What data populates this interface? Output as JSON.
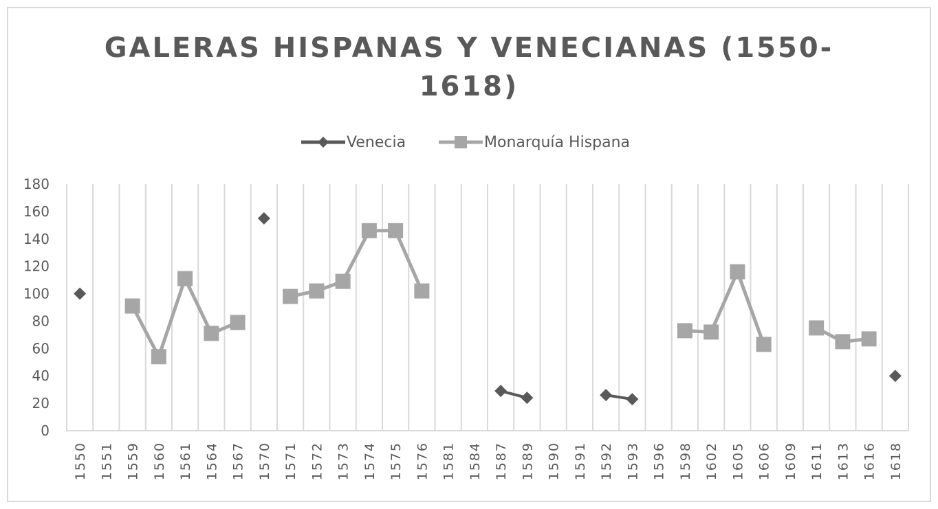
{
  "chart_data": {
    "type": "line",
    "title": "GALERAS HISPANAS Y VENECIANAS (1550-1618)",
    "title_lines": [
      "GALERAS HISPANAS Y VENECIANAS (1550-",
      "1618)"
    ],
    "categories": [
      "1550",
      "1551",
      "1559",
      "1560",
      "1561",
      "1564",
      "1567",
      "1570",
      "1571",
      "1572",
      "1573",
      "1574",
      "1575",
      "1576",
      "1581",
      "1584",
      "1587",
      "1589",
      "1590",
      "1591",
      "1592",
      "1593",
      "1596",
      "1598",
      "1602",
      "1605",
      "1606",
      "1609",
      "1611",
      "1613",
      "1616",
      "1618"
    ],
    "series": [
      {
        "name": "Venecia",
        "color": "#595959",
        "marker": "diamond",
        "values": [
          100,
          null,
          null,
          null,
          null,
          null,
          null,
          155,
          null,
          null,
          null,
          null,
          null,
          null,
          null,
          null,
          29,
          24,
          null,
          null,
          26,
          23,
          null,
          null,
          null,
          null,
          null,
          null,
          null,
          null,
          null,
          40
        ]
      },
      {
        "name": "Monarquía Hispana",
        "color": "#a6a6a6",
        "marker": "square",
        "values": [
          null,
          null,
          91,
          54,
          111,
          71,
          79,
          null,
          98,
          102,
          109,
          146,
          146,
          102,
          null,
          null,
          null,
          null,
          null,
          null,
          null,
          null,
          null,
          73,
          72,
          116,
          63,
          null,
          75,
          65,
          67,
          null
        ]
      }
    ],
    "ylim": [
      0,
      180
    ],
    "yticks": [
      0,
      20,
      40,
      60,
      80,
      100,
      120,
      140,
      160,
      180
    ],
    "grid": "vertical",
    "legend_position": "top"
  }
}
